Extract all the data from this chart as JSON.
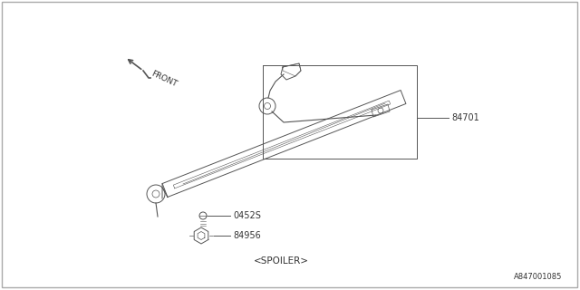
{
  "background_color": "#ffffff",
  "border_color": "#aaaaaa",
  "line_color": "#555555",
  "text_color": "#333333",
  "title": "A847001085",
  "spoiler_label": "<SPOILER>",
  "part_84701": "84701",
  "part_0452S": "0452S",
  "part_84956": "84956",
  "front_label": "FRONT",
  "fig_width": 6.4,
  "fig_height": 3.2,
  "dpi": 100
}
